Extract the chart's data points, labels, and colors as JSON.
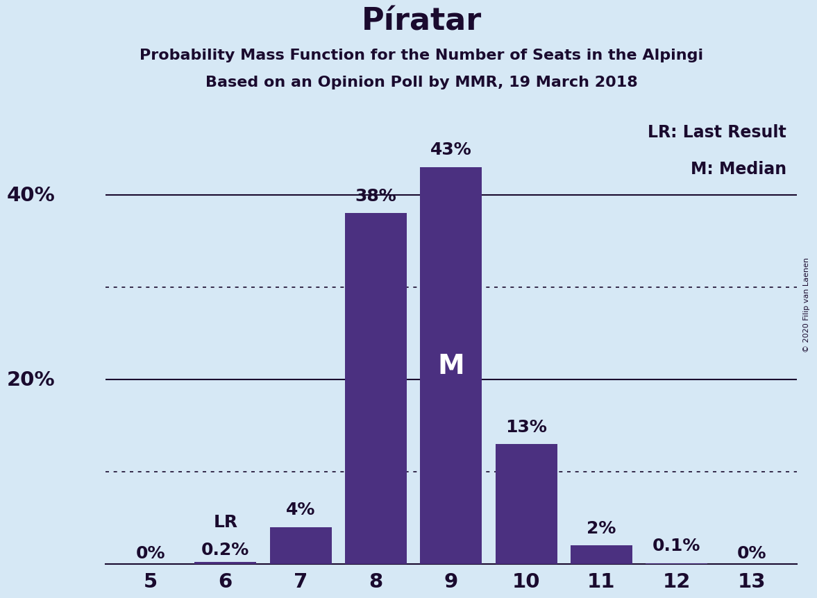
{
  "title": "Píratar",
  "subtitle1": "Probability Mass Function for the Number of Seats in the Alpingi",
  "subtitle2": "Based on an Opinion Poll by MMR, 19 March 2018",
  "copyright": "© 2020 Filip van Laenen",
  "seats": [
    5,
    6,
    7,
    8,
    9,
    10,
    11,
    12,
    13
  ],
  "probabilities": [
    0.0,
    0.2,
    4.0,
    38.0,
    43.0,
    13.0,
    2.0,
    0.1,
    0.0
  ],
  "bar_color": "#4B3080",
  "background_color": "#D6E8F5",
  "label_color": "#1A0A2E",
  "median_seat": 9,
  "last_result_seat": 6,
  "median_label": "M",
  "lr_label": "LR",
  "legend_lr": "LR: Last Result",
  "legend_m": "M: Median",
  "ylim": [
    0,
    50
  ],
  "solid_gridlines": [
    20,
    40
  ],
  "dotted_gridlines": [
    10,
    30
  ],
  "bar_labels": [
    "0%",
    "0.2%",
    "4%",
    "38%",
    "43%",
    "13%",
    "2%",
    "0.1%",
    "0%"
  ],
  "title_fontsize": 32,
  "subtitle_fontsize": 16,
  "bar_label_fontsize": 18,
  "tick_fontsize": 21,
  "ytick_fontsize": 21,
  "legend_fontsize": 17,
  "median_label_fontsize": 28,
  "copyright_fontsize": 8
}
